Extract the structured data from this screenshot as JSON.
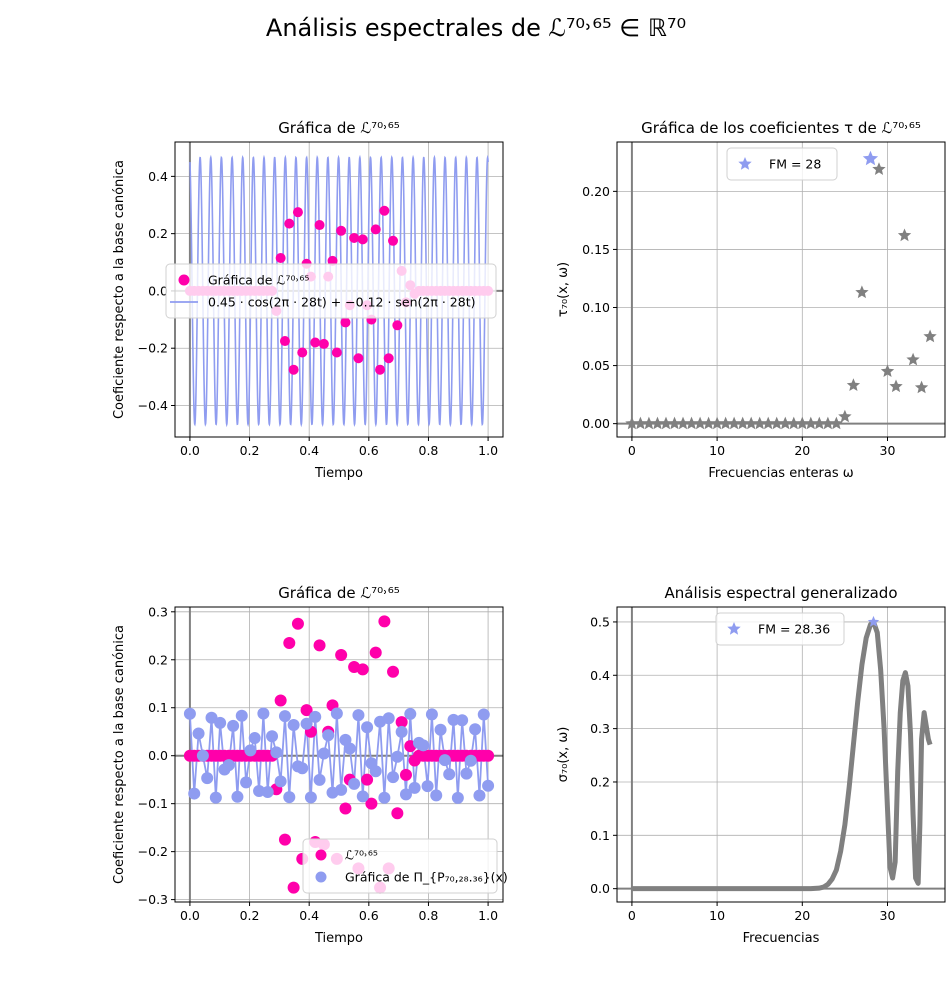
{
  "figure": {
    "suptitle": "Análisis espectrales de ℒ⁷⁰˒⁶⁵ ∈ ℝ⁷⁰"
  },
  "chart_data": [
    {
      "id": "p1",
      "type": "scatter+line",
      "title": "Gráfica de ℒ⁷⁰˒⁶⁵",
      "xlabel": "Tiempo",
      "ylabel": "Coeficiente respecto a la base canónica",
      "xlim": [
        -0.05,
        1.05
      ],
      "ylim": [
        -0.51,
        0.52
      ],
      "xticks": [
        0.0,
        0.2,
        0.4,
        0.6,
        0.8,
        1.0
      ],
      "xtick_labels": [
        "0.0",
        "0.2",
        "0.4",
        "0.6",
        "0.8",
        "1.0"
      ],
      "yticks": [
        -0.4,
        -0.2,
        0.0,
        0.2,
        0.4
      ],
      "ytick_labels": [
        "−0.4",
        "−0.2",
        "0.0",
        "0.2",
        "0.4"
      ],
      "grid": true,
      "legend": {
        "placement": "center-left",
        "entries": [
          "Gráfica de ℒ⁷⁰˒⁶⁵",
          "0.45 · cos(2π · 28t) + −0.12 · sen(2π · 28t)"
        ]
      },
      "scatter": {
        "name": "Gráfica de ℒ⁷⁰˒⁶⁵",
        "color": "#ff00aa",
        "x": [
          0,
          0.0145,
          0.029,
          0.0435,
          0.058,
          0.0725,
          0.087,
          0.1014,
          0.1159,
          0.1304,
          0.1449,
          0.1594,
          0.1739,
          0.1884,
          0.2029,
          0.2174,
          0.2319,
          0.2464,
          0.2609,
          0.2754,
          0.2899,
          0.3043,
          0.3188,
          0.3333,
          0.3478,
          0.3623,
          0.3768,
          0.3913,
          0.4058,
          0.4203,
          0.4348,
          0.4493,
          0.4638,
          0.4783,
          0.4928,
          0.5072,
          0.5217,
          0.5362,
          0.5507,
          0.5652,
          0.5797,
          0.5942,
          0.6087,
          0.6232,
          0.6377,
          0.6522,
          0.6667,
          0.6812,
          0.6957,
          0.7101,
          0.7246,
          0.7391,
          0.7536,
          0.7681,
          0.7826,
          0.7971,
          0.8116,
          0.8261,
          0.8406,
          0.8551,
          0.8696,
          0.8841,
          0.8986,
          0.913,
          0.9275,
          0.942,
          0.9565,
          0.971,
          0.9855,
          1.0
        ],
        "y": [
          0,
          0,
          0,
          0,
          0,
          0,
          0,
          0,
          0,
          0,
          0,
          0,
          0,
          0,
          0,
          0,
          0,
          0,
          0,
          0,
          -0.07,
          0.115,
          -0.175,
          0.235,
          -0.275,
          0.275,
          -0.215,
          0.095,
          0.05,
          -0.18,
          0.23,
          -0.185,
          0.05,
          0.105,
          -0.215,
          0.21,
          -0.11,
          -0.05,
          0.185,
          -0.235,
          0.18,
          -0.05,
          -0.1,
          0.215,
          -0.275,
          0.28,
          -0.235,
          0.175,
          -0.12,
          0.07,
          -0.04,
          0.02,
          -0.01,
          0,
          0,
          0,
          0,
          0,
          0,
          0,
          0,
          0,
          0,
          0,
          0,
          0,
          0,
          0,
          0,
          0
        ]
      },
      "line": {
        "name": "0.45 · cos(2π · 28t) + −0.12 · sen(2π · 28t)",
        "color": "#8f9cf0",
        "a": 0.45,
        "b": -0.12,
        "freq": 28
      }
    },
    {
      "id": "p2",
      "type": "scatter",
      "title": "Gráfica de los coeficientes τ de ℒ⁷⁰˒⁶⁵",
      "xlabel": "Frecuencias enteras ω",
      "ylabel": "τ₇₀(x, ω)",
      "xlim": [
        -1.75,
        36.75
      ],
      "ylim": [
        -0.0115,
        0.2425
      ],
      "xticks": [
        0,
        10,
        20,
        30
      ],
      "xtick_labels": [
        "0",
        "10",
        "20",
        "30"
      ],
      "yticks": [
        0.0,
        0.05,
        0.1,
        0.15,
        0.2
      ],
      "ytick_labels": [
        "0.00",
        "0.05",
        "0.10",
        "0.15",
        "0.20"
      ],
      "grid": true,
      "legend": {
        "placement": "top-center",
        "entries": [
          "FM = 28"
        ]
      },
      "highlight": {
        "x": 28,
        "y": 0.228,
        "color": "#8f9cf0"
      },
      "series_color": "#808080",
      "x": [
        0,
        1,
        2,
        3,
        4,
        5,
        6,
        7,
        8,
        9,
        10,
        11,
        12,
        13,
        14,
        15,
        16,
        17,
        18,
        19,
        20,
        21,
        22,
        23,
        24,
        25,
        26,
        27,
        29,
        30,
        31,
        32,
        33,
        34,
        35
      ],
      "y": [
        0,
        0,
        0,
        0,
        0,
        0,
        0,
        0,
        0,
        0,
        0,
        0,
        0,
        0,
        0,
        0,
        0,
        0,
        0,
        0,
        0,
        0,
        0,
        0,
        0,
        0.006,
        0.033,
        0.113,
        0.219,
        0.045,
        0.032,
        0.162,
        0.055,
        0.031,
        0.075
      ]
    },
    {
      "id": "p3",
      "type": "scatter+line",
      "title": "Gráfica de ℒ⁷⁰˒⁶⁵",
      "xlabel": "Tiempo",
      "ylabel": "Coeficiente respecto a la base canónica",
      "xlim": [
        -0.05,
        1.05
      ],
      "ylim": [
        -0.305,
        0.31
      ],
      "xticks": [
        0.0,
        0.2,
        0.4,
        0.6,
        0.8,
        1.0
      ],
      "xtick_labels": [
        "0.0",
        "0.2",
        "0.4",
        "0.6",
        "0.8",
        "1.0"
      ],
      "yticks": [
        -0.3,
        -0.2,
        -0.1,
        0.0,
        0.1,
        0.2,
        0.3
      ],
      "ytick_labels": [
        "−0.3",
        "−0.2",
        "−0.1",
        "0.0",
        "0.1",
        "0.2",
        "0.3"
      ],
      "grid": true,
      "legend": {
        "placement": "lower-right",
        "entries": [
          "ℒ⁷⁰˒⁶⁵",
          "Gráfica de Π_{P₇₀,₂₈.₃₆}(x)"
        ]
      },
      "scatter_pink": {
        "name": "ℒ⁷⁰˒⁶⁵",
        "color": "#ff00aa"
      },
      "scatter_blue": {
        "name": "Gráfica de Π_{P₇₀,₂₈.₃₆}(x)",
        "color": "#8f9cf0",
        "amp": 0.088,
        "freq": 28.36,
        "phase": 0.1
      }
    },
    {
      "id": "p4",
      "type": "line",
      "title": "Análisis espectral generalizado",
      "xlabel": "Frecuencias",
      "ylabel": "σ₇₀(x, ω)",
      "xlim": [
        -1.75,
        36.75
      ],
      "ylim": [
        -0.025,
        0.528
      ],
      "xticks": [
        0,
        10,
        20,
        30
      ],
      "xtick_labels": [
        "0",
        "10",
        "20",
        "30"
      ],
      "yticks": [
        0.0,
        0.1,
        0.2,
        0.3,
        0.4,
        0.5
      ],
      "ytick_labels": [
        "0.0",
        "0.1",
        "0.2",
        "0.3",
        "0.4",
        "0.5"
      ],
      "grid": true,
      "legend": {
        "placement": "top-center",
        "entries": [
          "FM = 28.36"
        ]
      },
      "highlight": {
        "x": 28.36,
        "y": 0.5,
        "color": "#8f9cf0"
      },
      "series_color": "#808080",
      "curve_x": [
        0,
        21,
        22,
        22.5,
        23,
        23.5,
        24,
        24.5,
        25,
        25.5,
        26,
        26.5,
        27,
        27.5,
        28,
        28.36,
        28.8,
        29.2,
        29.6,
        30,
        30.3,
        30.6,
        30.9,
        31.2,
        31.5,
        31.8,
        32.1,
        32.4,
        32.7,
        33,
        33.3,
        33.6,
        33.8,
        34,
        34.3,
        34.6,
        34.8,
        35
      ],
      "curve_y": [
        0,
        0,
        0.001,
        0.003,
        0.008,
        0.018,
        0.035,
        0.07,
        0.12,
        0.19,
        0.27,
        0.35,
        0.42,
        0.47,
        0.495,
        0.5,
        0.48,
        0.41,
        0.3,
        0.15,
        0.04,
        0.02,
        0.05,
        0.22,
        0.33,
        0.39,
        0.405,
        0.38,
        0.29,
        0.14,
        0.02,
        0.01,
        0.12,
        0.28,
        0.33,
        0.3,
        0.28,
        0.27
      ]
    }
  ]
}
